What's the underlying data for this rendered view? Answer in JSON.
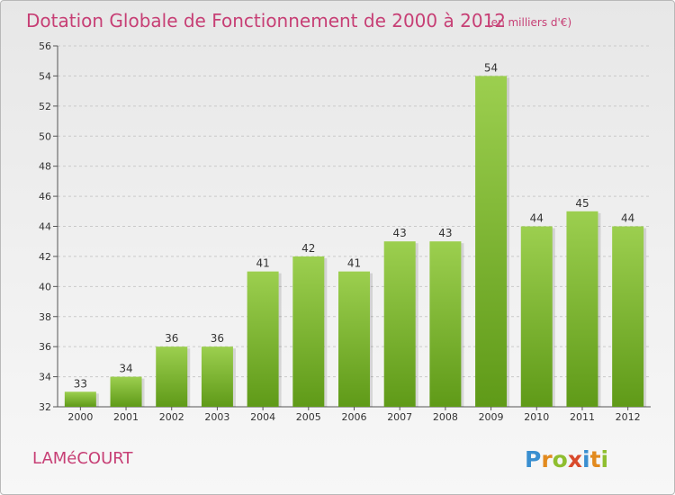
{
  "chart_data": {
    "type": "bar",
    "title": "Dotation Globale de Fonctionnement de 2000 à 2012",
    "subtitle": "(en milliers d'€)",
    "categories": [
      "2000",
      "2001",
      "2002",
      "2003",
      "2004",
      "2005",
      "2006",
      "2007",
      "2008",
      "2009",
      "2010",
      "2011",
      "2012"
    ],
    "values": [
      33,
      34,
      36,
      36,
      41,
      42,
      41,
      43,
      43,
      54,
      44,
      45,
      44
    ],
    "ylim": [
      32,
      56
    ],
    "yticks": [
      32,
      34,
      36,
      38,
      40,
      42,
      44,
      46,
      48,
      50,
      52,
      54,
      56
    ],
    "xlabel": "",
    "ylabel": "",
    "grid": true,
    "bar_color_top": "#9ccf4f",
    "bar_color_bottom": "#5f9a18"
  },
  "footer": {
    "commune": "LAMéCOURT",
    "logo_letters": [
      "P",
      "r",
      "o",
      "x",
      "i",
      "t",
      "i"
    ],
    "logo_colors": [
      "#3a8fd0",
      "#e28a1e",
      "#8fbe2f",
      "#d94a2c",
      "#3a8fd0",
      "#e28a1e",
      "#8fbe2f"
    ]
  }
}
